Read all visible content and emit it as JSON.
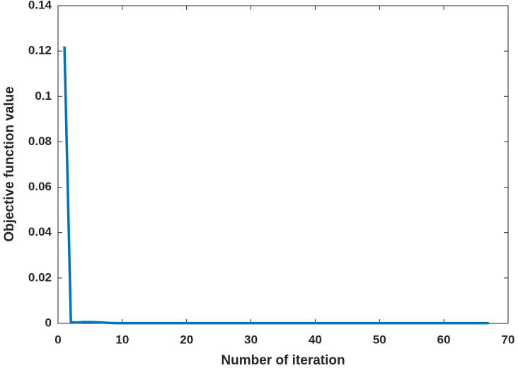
{
  "chart_data": {
    "type": "line",
    "x_label": "Number of iteration",
    "y_label": "Objective function value",
    "x": [
      1,
      2,
      3,
      4,
      5,
      6,
      7,
      8,
      9,
      10,
      11,
      12,
      13,
      14,
      15,
      16,
      17,
      18,
      19,
      20,
      21,
      22,
      23,
      24,
      25,
      26,
      27,
      28,
      29,
      30,
      31,
      32,
      33,
      34,
      35,
      36,
      37,
      38,
      39,
      40,
      41,
      42,
      43,
      44,
      45,
      46,
      47,
      48,
      49,
      50,
      51,
      52,
      53,
      54,
      55,
      56,
      57,
      58,
      59,
      60,
      61,
      62,
      63,
      64,
      65,
      66,
      67
    ],
    "series": [
      {
        "color": "#0072bd",
        "values": [
          0.122,
          0.0005,
          0.0004,
          0.0006,
          0.0006,
          0.0005,
          0.0004,
          0.0002,
          0.0001,
          0.0001,
          0.0001,
          0.0001,
          0.0001,
          0.0001,
          0.0001,
          0.0001,
          0.0001,
          0.0001,
          0.0001,
          0.0001,
          0.0001,
          0.0001,
          0.0001,
          0.0001,
          0.0001,
          0.0001,
          0.0001,
          0.0001,
          0.0001,
          0.0001,
          0.0001,
          0.0001,
          0.0001,
          0.0001,
          0.0001,
          0.0001,
          0.0001,
          0.0001,
          0.0001,
          0.0001,
          0.0001,
          0.0001,
          0.0001,
          0.0001,
          0.0001,
          0.0001,
          0.0001,
          0.0001,
          0.0001,
          0.0001,
          0.0001,
          0.0001,
          0.0001,
          0.0001,
          0.0001,
          0.0001,
          0.0001,
          0.0001,
          0.0001,
          0.0001,
          0.0001,
          0.0001,
          0.0001,
          0.0001,
          0.0001,
          0.0001,
          0.0001
        ]
      }
    ],
    "xlim": [
      0,
      70
    ],
    "xticks": [
      0,
      10,
      20,
      30,
      40,
      50,
      60,
      70
    ],
    "ylim": [
      0,
      0.14
    ],
    "yticks": [
      0,
      0.02,
      0.04,
      0.06,
      0.08,
      0.1,
      0.12,
      0.14
    ],
    "grid": false
  }
}
